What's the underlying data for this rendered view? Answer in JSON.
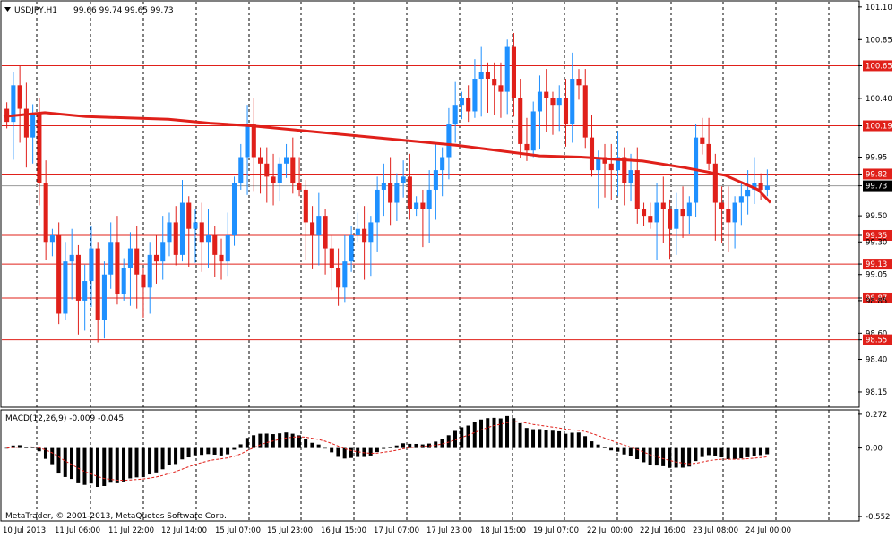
{
  "window": {
    "symbol_label": "USDJPY,H1",
    "ohlc_label": "99.66 99.74 99.65 99.73",
    "copyright": "MetaTrader, © 2001-2013, MetaQuotes Software Corp."
  },
  "colors": {
    "bull": "#1E90FF",
    "bear": "#E0201A",
    "ma": "#E0201A",
    "level": "#E0201A",
    "grid": "#000000",
    "hist": "#000000",
    "signal": "#E0201A",
    "price_badge": "#000000"
  },
  "chart_data": [
    {
      "type": "candlestick",
      "title": "USDJPY,H1",
      "ylim": [
        98.04,
        101.14
      ],
      "price_ticks": [
        "101.10",
        "100.85",
        "100.65",
        "100.40",
        "100.19",
        "99.95",
        "99.82",
        "99.73",
        "99.50",
        "99.35",
        "99.30",
        "99.13",
        "99.05",
        "98.87",
        "98.85",
        "98.60",
        "98.55",
        "98.40",
        "98.15"
      ],
      "x_labels": [
        "10 Jul 2013",
        "11 Jul 06:00",
        "11 Jul 22:00",
        "12 Jul 14:00",
        "15 Jul 07:00",
        "15 Jul 23:00",
        "16 Jul 15:00",
        "17 Jul 07:00",
        "17 Jul 23:00",
        "18 Jul 15:00",
        "19 Jul 07:00",
        "22 Jul 00:00",
        "22 Jul 16:00",
        "23 Jul 08:00",
        "24 Jul 00:00"
      ],
      "grid": "vertical-dashed",
      "current_price": "99.73",
      "levels": [
        "100.65",
        "100.19",
        "99.82",
        "99.35",
        "99.13",
        "98.87",
        "98.55"
      ],
      "ma_path": [
        [
          0,
          100.26
        ],
        [
          20,
          100.29
        ],
        [
          40,
          100.26
        ],
        [
          60,
          100.25
        ],
        [
          80,
          100.24
        ],
        [
          100,
          100.21
        ],
        [
          120,
          100.19
        ],
        [
          140,
          100.16
        ],
        [
          160,
          100.13
        ],
        [
          180,
          100.1
        ],
        [
          200,
          100.07
        ],
        [
          220,
          100.04
        ],
        [
          240,
          100.0
        ],
        [
          260,
          99.96
        ],
        [
          280,
          99.95
        ],
        [
          300,
          99.93
        ],
        [
          310,
          99.92
        ],
        [
          330,
          99.87
        ],
        [
          350,
          99.81
        ],
        [
          366,
          99.7
        ],
        [
          372,
          99.6
        ]
      ],
      "closes": [
        100.22,
        100.5,
        100.32,
        100.1,
        100.28,
        99.75,
        99.3,
        99.35,
        98.75,
        99.15,
        99.2,
        98.85,
        99.0,
        99.25,
        98.7,
        99.05,
        99.3,
        98.9,
        99.1,
        99.25,
        99.05,
        98.95,
        99.2,
        99.15,
        99.3,
        99.45,
        99.2,
        99.6,
        99.4,
        99.45,
        99.3,
        99.35,
        99.2,
        99.15,
        99.35,
        99.75,
        99.95,
        100.2,
        99.95,
        99.9,
        99.8,
        99.75,
        99.9,
        99.95,
        99.75,
        99.7,
        99.45,
        99.35,
        99.5,
        99.25,
        99.1,
        98.95,
        99.15,
        99.35,
        99.4,
        99.3,
        99.45,
        99.7,
        99.75,
        99.6,
        99.75,
        99.8,
        99.55,
        99.6,
        99.55,
        99.7,
        99.85,
        99.95,
        100.2,
        100.35,
        100.4,
        100.3,
        100.55,
        100.6,
        100.55,
        100.5,
        100.45,
        100.8,
        100.4,
        100.05,
        100.0,
        100.3,
        100.45,
        100.4,
        100.35,
        100.4,
        100.2,
        100.55,
        100.5,
        100.1,
        99.85,
        99.95,
        99.9,
        99.85,
        99.95,
        99.75,
        99.85,
        99.55,
        99.5,
        99.45,
        99.6,
        99.55,
        99.4,
        99.55,
        99.5,
        99.6,
        100.1,
        100.05,
        99.9,
        99.6,
        99.55,
        99.45,
        99.6,
        99.65,
        99.7,
        99.75,
        99.7,
        99.73
      ]
    },
    {
      "type": "macd",
      "title": "MACD(12,26,9) -0.009 -0.045",
      "params": "12,26,9",
      "macd_value": "-0.009",
      "signal_value": "-0.045",
      "ylim": [
        -0.58,
        0.3
      ],
      "ticks": [
        "0.272",
        "0.00",
        "-0.552"
      ]
    }
  ]
}
